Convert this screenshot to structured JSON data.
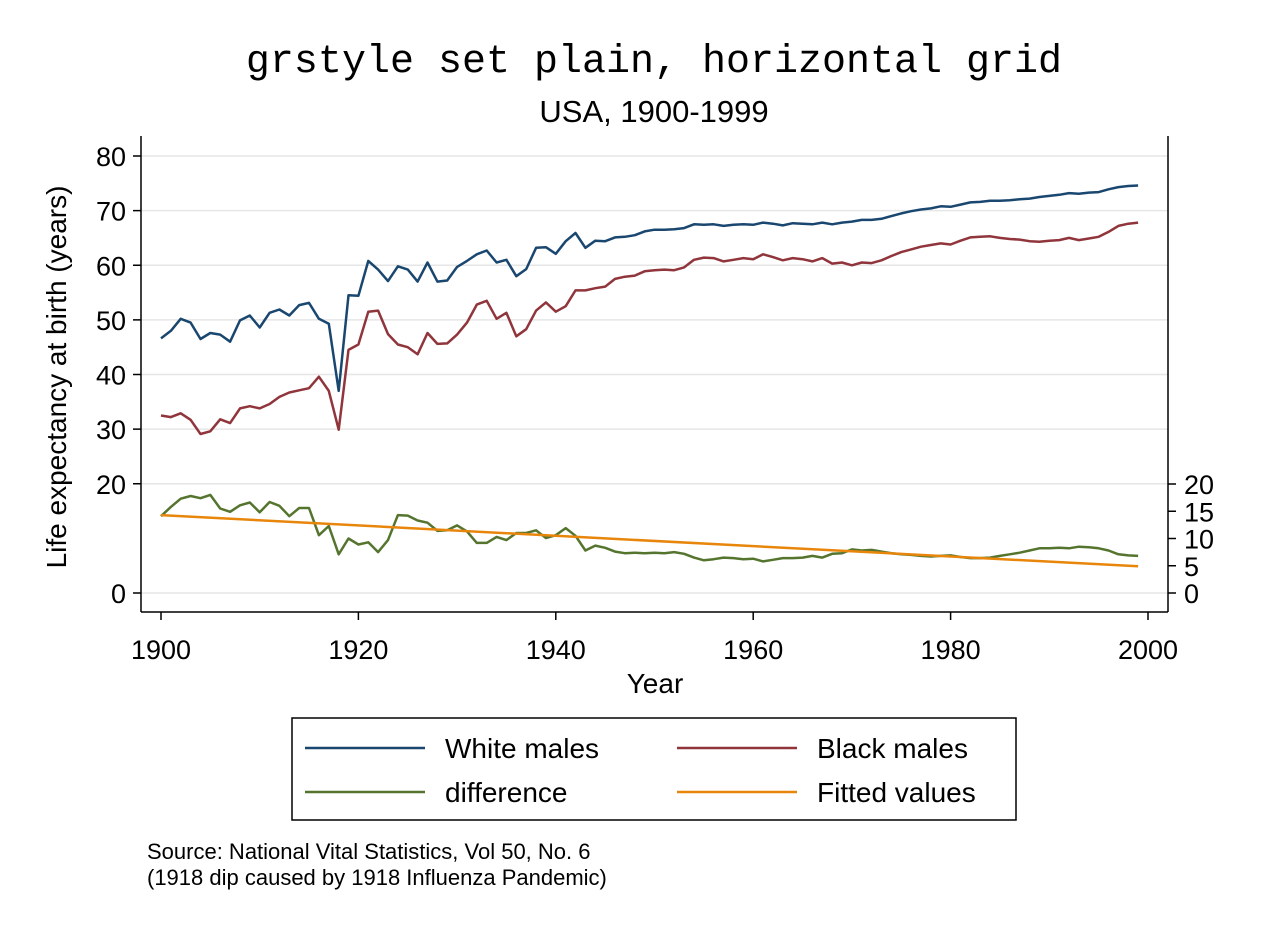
{
  "chart_data": {
    "type": "line",
    "title": "grstyle set plain, horizontal grid",
    "subtitle": "USA, 1900-1999",
    "xlabel": "Year",
    "ylabel": "Life expectancy at birth (years)",
    "xlim": [
      1900,
      2000
    ],
    "ylim": [
      0,
      80
    ],
    "y2lim": [
      0,
      20
    ],
    "xticks": [
      "1900",
      "1920",
      "1940",
      "1960",
      "1980",
      "2000"
    ],
    "yticks": [
      "0",
      "20",
      "30",
      "40",
      "50",
      "60",
      "70",
      "80"
    ],
    "y2ticks": [
      "0",
      "5",
      "10",
      "15",
      "20"
    ],
    "grid": "horizontal",
    "legend_position": "bottom",
    "x": [
      1900,
      1901,
      1902,
      1903,
      1904,
      1905,
      1906,
      1907,
      1908,
      1909,
      1910,
      1911,
      1912,
      1913,
      1914,
      1915,
      1916,
      1917,
      1918,
      1919,
      1920,
      1921,
      1922,
      1923,
      1924,
      1925,
      1926,
      1927,
      1928,
      1929,
      1930,
      1931,
      1932,
      1933,
      1934,
      1935,
      1936,
      1937,
      1938,
      1939,
      1940,
      1941,
      1942,
      1943,
      1944,
      1945,
      1946,
      1947,
      1948,
      1949,
      1950,
      1951,
      1952,
      1953,
      1954,
      1955,
      1956,
      1957,
      1958,
      1959,
      1960,
      1961,
      1962,
      1963,
      1964,
      1965,
      1966,
      1967,
      1968,
      1969,
      1970,
      1971,
      1972,
      1973,
      1974,
      1975,
      1976,
      1977,
      1978,
      1979,
      1980,
      1981,
      1982,
      1983,
      1984,
      1985,
      1986,
      1987,
      1988,
      1989,
      1990,
      1991,
      1992,
      1993,
      1994,
      1995,
      1996,
      1997,
      1998,
      1999
    ],
    "series": [
      {
        "name": "White males",
        "color": "#1a476f",
        "axis": "left",
        "values": [
          46.6,
          48.0,
          50.2,
          49.5,
          46.5,
          47.6,
          47.3,
          46.0,
          49.9,
          50.8,
          48.6,
          51.3,
          51.9,
          50.8,
          52.7,
          53.1,
          50.2,
          49.3,
          37.0,
          54.5,
          54.4,
          60.8,
          59.2,
          57.1,
          59.8,
          59.2,
          57.0,
          60.5,
          57.0,
          57.2,
          59.7,
          60.8,
          62.0,
          62.7,
          60.5,
          61.0,
          58.0,
          59.3,
          63.2,
          63.3,
          62.1,
          64.4,
          65.9,
          63.2,
          64.5,
          64.4,
          65.1,
          65.2,
          65.5,
          66.2,
          66.5,
          66.5,
          66.6,
          66.8,
          67.5,
          67.4,
          67.5,
          67.2,
          67.4,
          67.5,
          67.4,
          67.8,
          67.6,
          67.3,
          67.7,
          67.6,
          67.5,
          67.8,
          67.5,
          67.8,
          68.0,
          68.3,
          68.3,
          68.5,
          69.0,
          69.5,
          69.9,
          70.2,
          70.4,
          70.8,
          70.7,
          71.1,
          71.5,
          71.6,
          71.8,
          71.8,
          71.9,
          72.1,
          72.2,
          72.5,
          72.7,
          72.9,
          73.2,
          73.1,
          73.3,
          73.4,
          73.9,
          74.3,
          74.5,
          74.6
        ]
      },
      {
        "name": "Black males",
        "color": "#90353b",
        "axis": "left",
        "values": [
          32.5,
          32.2,
          32.9,
          31.7,
          29.1,
          29.6,
          31.8,
          31.1,
          33.8,
          34.2,
          33.8,
          34.6,
          35.9,
          36.7,
          37.1,
          37.5,
          39.6,
          37.0,
          29.9,
          44.5,
          45.5,
          51.5,
          51.7,
          47.4,
          45.5,
          45.0,
          43.7,
          47.6,
          45.6,
          45.7,
          47.3,
          49.5,
          52.8,
          53.5,
          50.2,
          51.3,
          47.0,
          48.3,
          51.7,
          53.2,
          51.5,
          52.5,
          55.4,
          55.4,
          55.8,
          56.1,
          57.5,
          57.9,
          58.1,
          58.9,
          59.1,
          59.2,
          59.1,
          59.6,
          61.0,
          61.4,
          61.3,
          60.7,
          61.0,
          61.3,
          61.1,
          62.0,
          61.5,
          60.9,
          61.3,
          61.1,
          60.7,
          61.3,
          60.3,
          60.5,
          60.0,
          60.5,
          60.4,
          60.9,
          61.7,
          62.4,
          62.9,
          63.4,
          63.7,
          64.0,
          63.8,
          64.5,
          65.1,
          65.2,
          65.3,
          65.0,
          64.8,
          64.7,
          64.4,
          64.3,
          64.5,
          64.6,
          65.0,
          64.6,
          64.9,
          65.2,
          66.1,
          67.2,
          67.6,
          67.8
        ]
      },
      {
        "name": "difference",
        "color": "#55752f",
        "axis": "right",
        "values": [
          14.1,
          15.8,
          17.3,
          17.8,
          17.4,
          18.0,
          15.5,
          14.9,
          16.1,
          16.6,
          14.8,
          16.7,
          16.0,
          14.1,
          15.6,
          15.6,
          10.6,
          12.3,
          7.1,
          10.0,
          8.9,
          9.3,
          7.5,
          9.7,
          14.3,
          14.2,
          13.3,
          12.9,
          11.4,
          11.5,
          12.4,
          11.3,
          9.2,
          9.2,
          10.3,
          9.7,
          11.0,
          11.0,
          11.5,
          10.1,
          10.6,
          11.9,
          10.5,
          7.8,
          8.7,
          8.3,
          7.6,
          7.3,
          7.4,
          7.3,
          7.4,
          7.3,
          7.5,
          7.2,
          6.5,
          6.0,
          6.2,
          6.5,
          6.4,
          6.2,
          6.3,
          5.8,
          6.1,
          6.4,
          6.4,
          6.5,
          6.8,
          6.5,
          7.2,
          7.3,
          8.0,
          7.8,
          7.9,
          7.6,
          7.3,
          7.1,
          7.0,
          6.8,
          6.7,
          6.8,
          6.9,
          6.6,
          6.4,
          6.4,
          6.5,
          6.8,
          7.1,
          7.4,
          7.8,
          8.2,
          8.2,
          8.3,
          8.2,
          8.5,
          8.4,
          8.2,
          7.8,
          7.1,
          6.9,
          6.8
        ]
      },
      {
        "name": "Fitted values",
        "color": "#e8860c",
        "axis": "right",
        "values_linear": {
          "x": [
            1900,
            1999
          ],
          "y": [
            14.3,
            4.9
          ]
        }
      }
    ]
  },
  "note": {
    "line1": "Source: National Vital Statistics, Vol 50, No. 6",
    "line2": "(1918 dip caused by 1918 Influenza Pandemic)"
  }
}
